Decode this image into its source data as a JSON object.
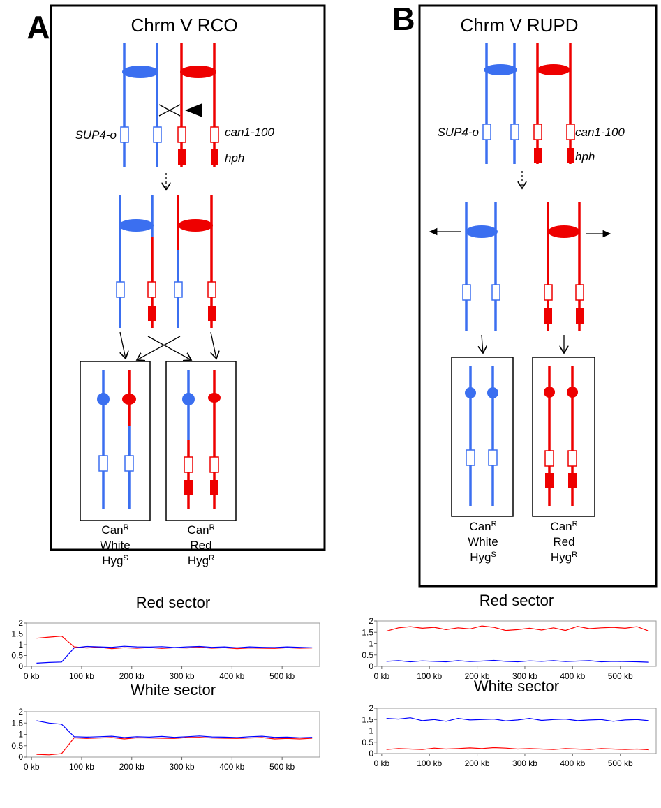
{
  "panels": [
    {
      "letter": "A",
      "title": "Chrm V RCO",
      "marker_left": "SUP4-o",
      "marker_right": "can1-100",
      "marker_right_2": "hph",
      "outcomes": [
        [
          {
            "text": "Can",
            "sup": "R"
          },
          {
            "text": "White"
          },
          {
            "text": "Hyg",
            "sup": "S"
          }
        ],
        [
          {
            "text": "Can",
            "sup": "R"
          },
          {
            "text": "Red"
          },
          {
            "text": "Hyg",
            "sup": "R"
          }
        ]
      ]
    },
    {
      "letter": "B",
      "title": "Chrm V RUPD",
      "marker_left": "SUP4-o",
      "marker_right": "can1-100",
      "marker_right_2": "hph",
      "outcomes": [
        [
          {
            "text": "Can",
            "sup": "R"
          },
          {
            "text": "White"
          },
          {
            "text": "Hyg",
            "sup": "S"
          }
        ],
        [
          {
            "text": "Can",
            "sup": "R"
          },
          {
            "text": "Red"
          },
          {
            "text": "Hyg",
            "sup": "R"
          }
        ]
      ]
    }
  ],
  "chart_data": [
    {
      "type": "line",
      "title": "Red sector",
      "x": [
        10,
        35,
        60,
        85,
        110,
        135,
        160,
        185,
        210,
        235,
        260,
        285,
        310,
        335,
        360,
        385,
        410,
        435,
        460,
        485,
        510,
        535,
        560
      ],
      "series": [
        {
          "color": "#ff0000",
          "values": [
            1.3,
            1.35,
            1.4,
            0.9,
            0.85,
            0.88,
            0.82,
            0.86,
            0.84,
            0.87,
            0.83,
            0.86,
            0.85,
            0.88,
            0.84,
            0.86,
            0.82,
            0.85,
            0.84,
            0.83,
            0.86,
            0.84,
            0.85
          ]
        },
        {
          "color": "#0000ff",
          "values": [
            0.15,
            0.18,
            0.2,
            0.85,
            0.92,
            0.9,
            0.88,
            0.93,
            0.9,
            0.89,
            0.91,
            0.87,
            0.9,
            0.92,
            0.88,
            0.9,
            0.86,
            0.9,
            0.88,
            0.87,
            0.9,
            0.88,
            0.86
          ]
        }
      ],
      "xlim": [
        -10,
        575
      ],
      "ylim": [
        0,
        2
      ],
      "yticks": [
        0,
        0.5,
        1,
        1.5,
        2
      ],
      "xticks": [
        {
          "value": 0,
          "label": "0 kb"
        },
        {
          "value": 100,
          "label": "100 kb"
        },
        {
          "value": 200,
          "label": "200 kb"
        },
        {
          "value": 300,
          "label": "300 kb"
        },
        {
          "value": 400,
          "label": "400 kb"
        },
        {
          "value": 500,
          "label": "500 kb"
        }
      ]
    },
    {
      "type": "line",
      "title": "White sector",
      "x": [
        10,
        35,
        60,
        85,
        110,
        135,
        160,
        185,
        210,
        235,
        260,
        285,
        310,
        335,
        360,
        385,
        410,
        435,
        460,
        485,
        510,
        535,
        560
      ],
      "series": [
        {
          "color": "#0000ff",
          "values": [
            1.6,
            1.5,
            1.45,
            0.9,
            0.88,
            0.9,
            0.92,
            0.86,
            0.9,
            0.88,
            0.91,
            0.87,
            0.9,
            0.93,
            0.89,
            0.88,
            0.86,
            0.9,
            0.92,
            0.87,
            0.88,
            0.85,
            0.87
          ]
        },
        {
          "color": "#ff0000",
          "values": [
            0.12,
            0.1,
            0.15,
            0.85,
            0.82,
            0.84,
            0.86,
            0.8,
            0.85,
            0.84,
            0.83,
            0.82,
            0.86,
            0.87,
            0.84,
            0.83,
            0.82,
            0.84,
            0.86,
            0.8,
            0.82,
            0.8,
            0.83
          ]
        }
      ],
      "xlim": [
        -10,
        575
      ],
      "ylim": [
        0,
        2
      ],
      "yticks": [
        0,
        0.5,
        1,
        1.5,
        2
      ],
      "xticks": [
        {
          "value": 0,
          "label": "0 kb"
        },
        {
          "value": 100,
          "label": "100 kb"
        },
        {
          "value": 200,
          "label": "200 kb"
        },
        {
          "value": 300,
          "label": "300 kb"
        },
        {
          "value": 400,
          "label": "400 kb"
        },
        {
          "value": 500,
          "label": "500 kb"
        }
      ]
    },
    {
      "type": "line",
      "title": "Red sector",
      "x": [
        10,
        35,
        60,
        85,
        110,
        135,
        160,
        185,
        210,
        235,
        260,
        285,
        310,
        335,
        360,
        385,
        410,
        435,
        460,
        485,
        510,
        535,
        560
      ],
      "series": [
        {
          "color": "#ff0000",
          "values": [
            1.55,
            1.7,
            1.75,
            1.68,
            1.72,
            1.62,
            1.7,
            1.65,
            1.78,
            1.72,
            1.58,
            1.62,
            1.68,
            1.6,
            1.7,
            1.58,
            1.76,
            1.66,
            1.7,
            1.72,
            1.68,
            1.75,
            1.55
          ]
        },
        {
          "color": "#0000ff",
          "values": [
            0.22,
            0.25,
            0.2,
            0.24,
            0.22,
            0.2,
            0.25,
            0.21,
            0.23,
            0.26,
            0.22,
            0.2,
            0.24,
            0.22,
            0.25,
            0.21,
            0.23,
            0.25,
            0.2,
            0.22,
            0.21,
            0.2,
            0.18
          ]
        }
      ],
      "xlim": [
        -10,
        575
      ],
      "ylim": [
        0,
        2
      ],
      "yticks": [
        0,
        0.5,
        1,
        1.5,
        2
      ],
      "xticks": [
        {
          "value": 0,
          "label": "0 kb"
        },
        {
          "value": 100,
          "label": "100 kb"
        },
        {
          "value": 200,
          "label": "200 kb"
        },
        {
          "value": 300,
          "label": "300 kb"
        },
        {
          "value": 400,
          "label": "400 kb"
        },
        {
          "value": 500,
          "label": "500 kb"
        }
      ]
    },
    {
      "type": "line",
      "title": "White sector",
      "x": [
        10,
        35,
        60,
        85,
        110,
        135,
        160,
        185,
        210,
        235,
        260,
        285,
        310,
        335,
        360,
        385,
        410,
        435,
        460,
        485,
        510,
        535,
        560
      ],
      "series": [
        {
          "color": "#0000ff",
          "values": [
            1.55,
            1.52,
            1.58,
            1.45,
            1.5,
            1.42,
            1.55,
            1.48,
            1.5,
            1.52,
            1.44,
            1.48,
            1.55,
            1.46,
            1.5,
            1.52,
            1.45,
            1.48,
            1.5,
            1.42,
            1.48,
            1.5,
            1.45
          ]
        },
        {
          "color": "#ff0000",
          "values": [
            0.18,
            0.22,
            0.2,
            0.18,
            0.24,
            0.2,
            0.22,
            0.25,
            0.22,
            0.26,
            0.24,
            0.2,
            0.22,
            0.2,
            0.18,
            0.22,
            0.2,
            0.18,
            0.22,
            0.2,
            0.18,
            0.2,
            0.17
          ]
        }
      ],
      "xlim": [
        -10,
        575
      ],
      "ylim": [
        0,
        2
      ],
      "yticks": [
        0,
        0.5,
        1,
        1.5,
        2
      ],
      "xticks": [
        {
          "value": 0,
          "label": "0 kb"
        },
        {
          "value": 100,
          "label": "100 kb"
        },
        {
          "value": 200,
          "label": "200 kb"
        },
        {
          "value": 300,
          "label": "300 kb"
        },
        {
          "value": 400,
          "label": "400 kb"
        },
        {
          "value": 500,
          "label": "500 kb"
        }
      ]
    }
  ]
}
